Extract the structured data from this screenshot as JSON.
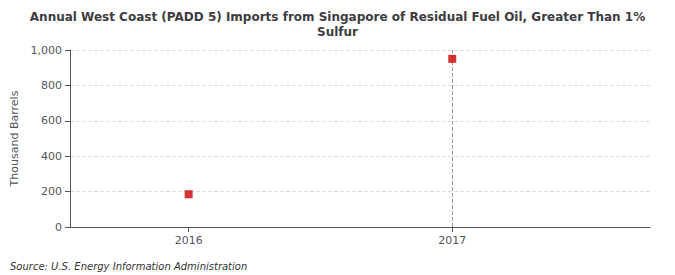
{
  "chart_data": {
    "type": "scatter",
    "title": "Annual West Coast (PADD 5) Imports from Singapore of Residual Fuel Oil, Greater Than 1%\nSulfur",
    "ylabel": "Thousand Barrels",
    "source": "Source: U.S. Energy Information Administration",
    "x": [
      2016,
      2017
    ],
    "values": [
      185,
      950
    ],
    "color": "#cc0000",
    "marker": "square",
    "xlim": [
      2015.55,
      2017.75
    ],
    "xticks": [
      2016,
      2017
    ],
    "ylim": [
      0,
      1000
    ],
    "yticks": [
      0,
      200,
      400,
      600,
      800,
      {
        "value": 1000,
        "label": "1,000"
      }
    ],
    "vlines": [
      2017
    ],
    "grid": true
  }
}
